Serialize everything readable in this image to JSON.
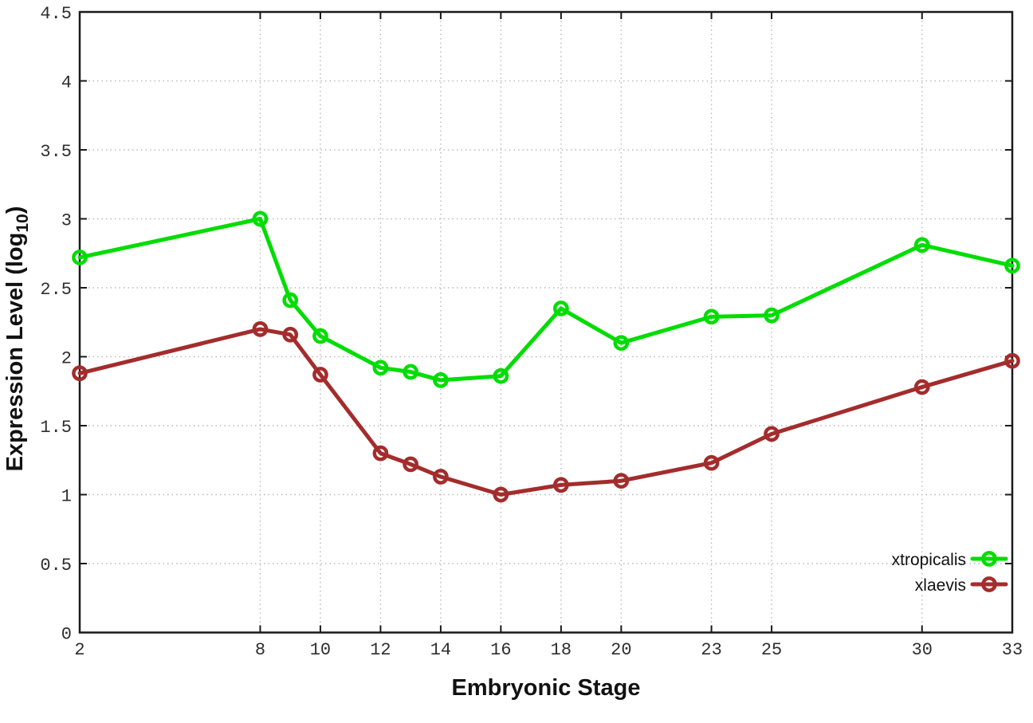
{
  "chart_data": {
    "type": "line",
    "title": "",
    "xlabel": "Embryonic Stage",
    "ylabel": "Expression Level (log10)",
    "ylabel_parts": {
      "pre": "Expression Level (log",
      "sub": "10",
      "post": ")"
    },
    "xlim": [
      2,
      33
    ],
    "ylim": [
      0,
      4.5
    ],
    "xticks": [
      2,
      8,
      10,
      12,
      14,
      16,
      18,
      20,
      23,
      25,
      30,
      33
    ],
    "ytick_labels": [
      "0",
      "0.5",
      "1",
      "1.5",
      "2",
      "2.5",
      "3",
      "3.5",
      "4",
      "4.5"
    ],
    "grid": true,
    "legend_position": "inside-bottom-right",
    "x": [
      2,
      8,
      9,
      10,
      12,
      13,
      14,
      16,
      18,
      20,
      23,
      25,
      30,
      33
    ],
    "series": [
      {
        "name": "xtropicalis",
        "color": "#00dd00",
        "values": [
          2.72,
          3.0,
          2.41,
          2.15,
          1.92,
          1.89,
          1.83,
          1.86,
          2.35,
          2.1,
          2.29,
          2.3,
          2.81,
          2.66
        ]
      },
      {
        "name": "xlaevis",
        "color": "#a42c2c",
        "values": [
          1.88,
          2.2,
          2.16,
          1.87,
          1.3,
          1.22,
          1.13,
          1.0,
          1.07,
          1.1,
          1.23,
          1.44,
          1.78,
          1.97
        ]
      }
    ]
  },
  "colors": {
    "frame": "#1a1a1a",
    "grid": "#b9b9b9",
    "background": "#ffffff"
  }
}
